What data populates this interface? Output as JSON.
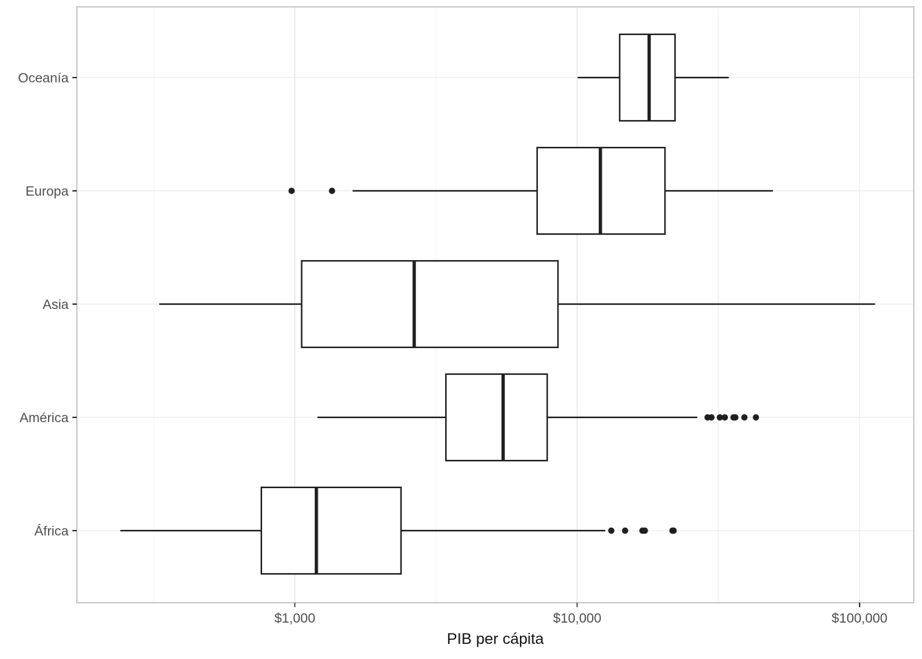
{
  "chart_data": {
    "type": "boxplot",
    "orientation": "horizontal",
    "x_scale": "log10",
    "xlabel": "PIB per cápita",
    "x_domain": [
      169,
      155600
    ],
    "x_ticks": [
      {
        "value": 1000,
        "label": "$1,000"
      },
      {
        "value": 10000,
        "label": "$10,000"
      },
      {
        "value": 100000,
        "label": "$100,000"
      }
    ],
    "x_minor_ticks": [
      316.2,
      3162.3,
      31622.8
    ],
    "categories_top_to_bottom": [
      "Oceanía",
      "Europa",
      "Asia",
      "América",
      "África"
    ],
    "series": [
      {
        "category": "Oceanía",
        "whisker_low": 10040,
        "q1": 14140,
        "median": 17980,
        "q3": 22210,
        "whisker_high": 34435,
        "outliers": []
      },
      {
        "category": "Europa",
        "whisker_low": 1601,
        "q1": 7213,
        "median": 12082,
        "q3": 20461,
        "whisker_high": 49357,
        "outliers": [
          974,
          1354
        ]
      },
      {
        "category": "Asia",
        "whisker_low": 331,
        "q1": 1057,
        "median": 2647,
        "q3": 8549,
        "whisker_high": 113523,
        "outliers": []
      },
      {
        "category": "América",
        "whisker_low": 1202,
        "q1": 3428,
        "median": 5466,
        "q3": 7830,
        "whisker_high": 26627,
        "outliers": [
          28955,
          29884,
          32004,
          33329,
          35767,
          36319,
          39097,
          42952
        ]
      },
      {
        "category": "África",
        "whisker_low": 241,
        "q1": 761,
        "median": 1192,
        "q3": 2377,
        "whisker_high": 12570,
        "outliers": [
          13206,
          14779,
          17024,
          17364,
          21746,
          21951
        ]
      }
    ],
    "legend": "none",
    "grid": "major-and-minor"
  },
  "style": {
    "background": "#ffffff",
    "panel_border": "#c9c9c9",
    "grid_major": "#e7e7e7",
    "grid_minor": "#f3f3f3",
    "box_stroke": "#1f1f1f",
    "box_fill": "#ffffff",
    "median_stroke": "#1f1f1f",
    "outlier_fill": "#1f1f1f",
    "tick_mark_color": "#333333",
    "tick_label_color": "#4d4d4d",
    "axis_title_color": "#111111"
  }
}
